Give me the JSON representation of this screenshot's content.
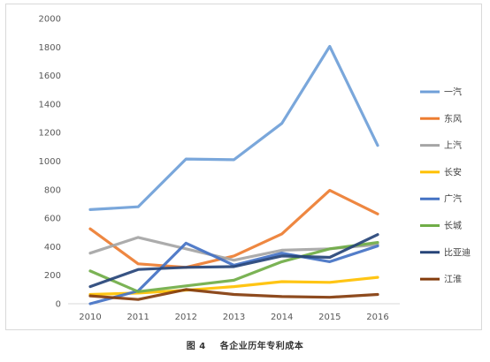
{
  "chart_data": {
    "type": "line",
    "title": "",
    "xlabel": "",
    "ylabel": "",
    "ylim": [
      0,
      2000
    ],
    "yticks": [
      0,
      200,
      400,
      600,
      800,
      1000,
      1200,
      1400,
      1600,
      1800,
      2000
    ],
    "x": [
      "2010",
      "2011",
      "2012",
      "2013",
      "2014",
      "2015",
      "2016"
    ],
    "grid": false,
    "legend_position": "right",
    "series": [
      {
        "name": "一汽",
        "color": "#6f9fd8",
        "values": [
          660,
          680,
          1015,
          1010,
          1265,
          1805,
          1110
        ]
      },
      {
        "name": "东风",
        "color": "#ed7d31",
        "values": [
          525,
          280,
          255,
          335,
          490,
          795,
          630
        ]
      },
      {
        "name": "上汽",
        "color": "#a5a5a5",
        "values": [
          355,
          465,
          385,
          305,
          375,
          385,
          415
        ]
      },
      {
        "name": "长安",
        "color": "#ffc000",
        "values": [
          65,
          75,
          95,
          120,
          155,
          150,
          185
        ]
      },
      {
        "name": "广汽",
        "color": "#4472c4",
        "values": [
          0,
          90,
          425,
          270,
          355,
          295,
          405
        ]
      },
      {
        "name": "长城",
        "color": "#70ad47",
        "values": [
          230,
          85,
          125,
          165,
          295,
          385,
          430
        ]
      },
      {
        "name": "比亚迪",
        "color": "#264478",
        "values": [
          120,
          240,
          255,
          260,
          335,
          325,
          485
        ]
      },
      {
        "name": "江淮",
        "color": "#843c0c",
        "values": [
          55,
          30,
          100,
          65,
          50,
          45,
          65
        ]
      }
    ]
  },
  "caption": {
    "figure_label": "图 4",
    "title": "各企业历年专利成本"
  }
}
